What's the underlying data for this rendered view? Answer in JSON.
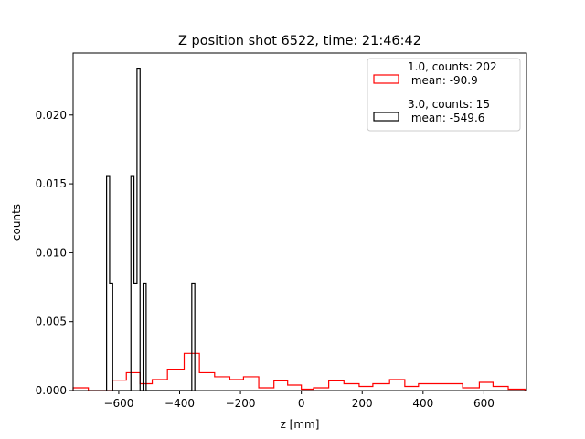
{
  "chart_data": {
    "type": "histogram",
    "title": "Z position shot 6522, time: 21:46:42",
    "xlabel": "z [mm]",
    "ylabel": "counts",
    "xlim": [
      -750,
      740
    ],
    "ylim": [
      0,
      0.0245
    ],
    "grid": false,
    "legend_position": "top-right",
    "xticks": [
      {
        "value": -600,
        "label": "−600"
      },
      {
        "value": -400,
        "label": "−400"
      },
      {
        "value": -200,
        "label": "−200"
      },
      {
        "value": 0,
        "label": "0"
      },
      {
        "value": 200,
        "label": "200"
      },
      {
        "value": 400,
        "label": "400"
      },
      {
        "value": 600,
        "label": "600"
      }
    ],
    "yticks": [
      {
        "value": 0,
        "label": "0.000"
      },
      {
        "value": 0.005,
        "label": "0.005"
      },
      {
        "value": 0.01,
        "label": "0.010"
      },
      {
        "value": 0.015,
        "label": "0.015"
      },
      {
        "value": 0.02,
        "label": "0.020"
      }
    ],
    "series": [
      {
        "name": "1.0, counts: 202\n mean: -90.9",
        "color": "#ff0000",
        "bin_edges": [
          -750,
          -700,
          -650,
          -620,
          -575,
          -530,
          -490,
          -440,
          -385,
          -335,
          -285,
          -235,
          -190,
          -140,
          -90,
          -45,
          0,
          40,
          90,
          140,
          190,
          235,
          290,
          340,
          385,
          430,
          485,
          530,
          585,
          630,
          680,
          735
        ],
        "values": [
          0.0002,
          0.0,
          0.0,
          0.00075,
          0.0013,
          0.0005,
          0.0008,
          0.0015,
          0.0027,
          0.0013,
          0.001,
          0.0008,
          0.001,
          0.0002,
          0.0007,
          0.0004,
          0.0001,
          0.0002,
          0.0007,
          0.0005,
          0.0003,
          0.0005,
          0.0008,
          0.0003,
          0.0005,
          0.0005,
          0.0005,
          0.0002,
          0.0006,
          0.0003,
          0.0001
        ]
      },
      {
        "name": "3.0, counts: 15\n mean: -549.6",
        "color": "#000000",
        "bin_edges": [
          -640,
          -630,
          -620,
          -610,
          -600,
          -590,
          -580,
          -570,
          -560,
          -550,
          -540,
          -530,
          -520,
          -510,
          -500,
          -490,
          -480,
          -470,
          -460,
          -450,
          -440,
          -430,
          -420,
          -410,
          -400,
          -390,
          -380,
          -370,
          -360,
          -350
        ],
        "values": [
          0.0156,
          0.0078,
          0.0,
          0.0,
          0.0,
          0.0,
          0.0,
          0.0,
          0.0156,
          0.0078,
          0.0234,
          0.0,
          0.0078,
          0.0,
          0.0,
          0.0,
          0.0,
          0.0,
          0.0,
          0.0,
          0.0,
          0.0,
          0.0,
          0.0,
          0.0,
          0.0,
          0.0,
          0.0,
          0.0078
        ]
      }
    ]
  }
}
